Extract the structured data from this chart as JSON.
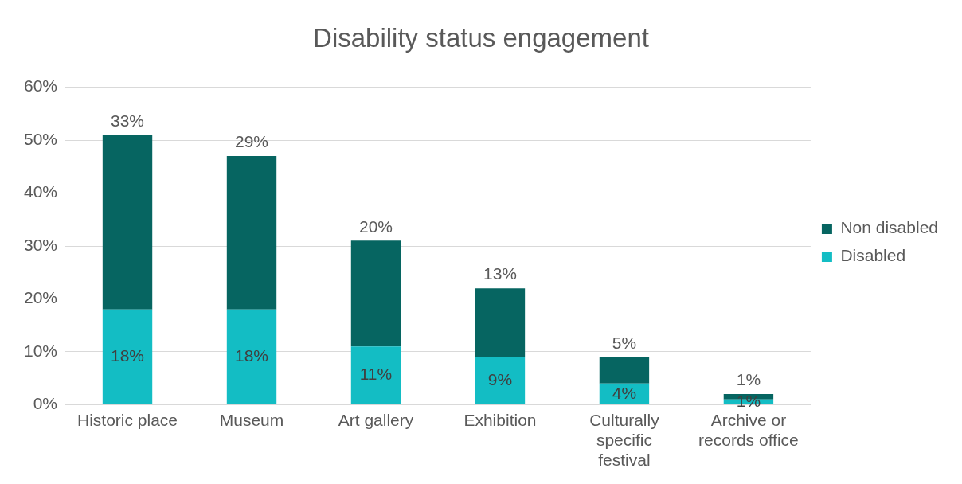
{
  "chart_data": {
    "type": "bar",
    "title": "Disability status engagement",
    "stacked": true,
    "categories": [
      "Historic place",
      "Museum",
      "Art gallery",
      "Exhibition",
      "Culturally specific festival",
      "Archive or records office"
    ],
    "series": [
      {
        "name": "Disabled",
        "color": "#13bdc4",
        "values": [
          18,
          18,
          11,
          9,
          4,
          1
        ],
        "value_labels": [
          "18%",
          "18%",
          "11%",
          "9%",
          "4%",
          "1%"
        ]
      },
      {
        "name": "Non disabled",
        "color": "#066561",
        "values": [
          33,
          29,
          20,
          13,
          5,
          1
        ],
        "value_labels": [
          "33%",
          "29%",
          "20%",
          "13%",
          "5%",
          "1%"
        ]
      }
    ],
    "ylim": [
      0,
      60
    ],
    "yticks": [
      {
        "value": 0,
        "label": "0%"
      },
      {
        "value": 10,
        "label": "10%"
      },
      {
        "value": 20,
        "label": "20%"
      },
      {
        "value": 30,
        "label": "30%"
      },
      {
        "value": 40,
        "label": "40%"
      },
      {
        "value": 50,
        "label": "50%"
      },
      {
        "value": 60,
        "label": "60%"
      }
    ],
    "grid": "y",
    "legend": "right"
  }
}
